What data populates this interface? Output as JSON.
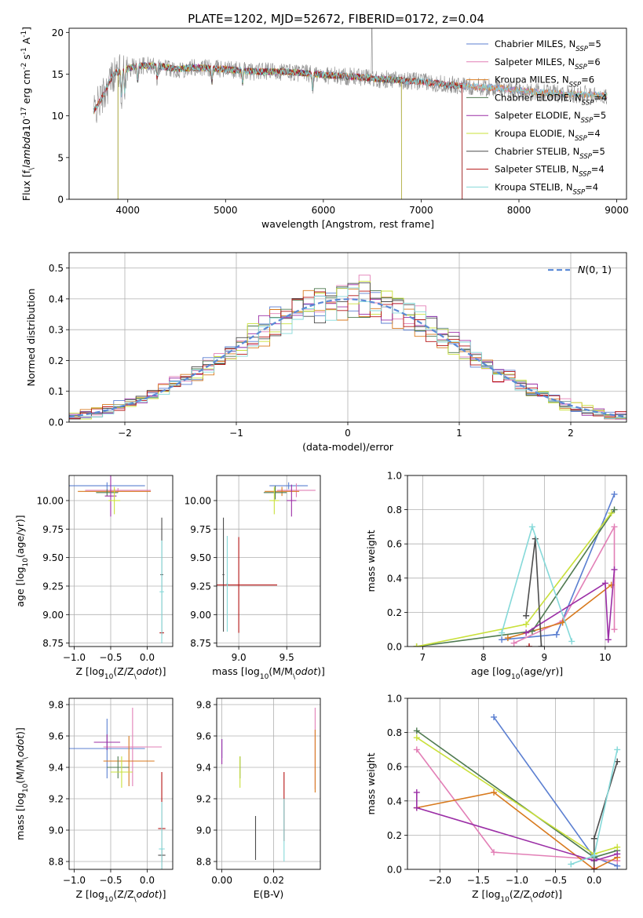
{
  "figure": {
    "title": "PLATE=1202, MJD=52672, FIBERID=0172, z=0.04"
  },
  "models": [
    {
      "name": "Chabrier MILES, N$_{SSP}$=5",
      "label": "Chabrier MILES, N",
      "sub": "SSP",
      "post": "=5",
      "color": "#5b7fd1"
    },
    {
      "name": "Salpeter MILES, N$_{SSP}$=6",
      "label": "Salpeter MILES, N",
      "sub": "SSP",
      "post": "=6",
      "color": "#e27fb6"
    },
    {
      "name": "Kroupa MILES, N$_{SSP}$=6",
      "label": "Kroupa MILES, N",
      "sub": "SSP",
      "post": "=6",
      "color": "#d87a1e"
    },
    {
      "name": "Chabrier ELODIE, N$_{SSP}$=4",
      "label": "Chabrier ELODIE, N",
      "sub": "SSP",
      "post": "=4",
      "color": "#4f7a50"
    },
    {
      "name": "Salpeter ELODIE, N$_{SSP}$=5",
      "label": "Salpeter ELODIE, N",
      "sub": "SSP",
      "post": "=5",
      "color": "#9b2ea6"
    },
    {
      "name": "Kroupa ELODIE, N$_{SSP}$=4",
      "label": "Kroupa ELODIE, N",
      "sub": "SSP",
      "post": "=4",
      "color": "#c9e03a"
    },
    {
      "name": "Chabrier STELIB, N$_{SSP}$=5",
      "label": "Chabrier STELIB, N",
      "sub": "SSP",
      "post": "=5",
      "color": "#4d4d4d"
    },
    {
      "name": "Salpeter STELIB, N$_{SSP}$=4",
      "label": "Salpeter STELIB, N",
      "sub": "SSP",
      "post": "=4",
      "color": "#b51414"
    },
    {
      "name": "Kroupa STELIB, N$_{SSP}$=4",
      "label": "Kroupa STELIB, N",
      "sub": "SSP",
      "post": "=4",
      "color": "#85d9d9"
    }
  ],
  "chart_data": [
    {
      "id": "spectrum",
      "type": "line",
      "xlabel": "wavelength [Angstrom, rest frame]",
      "ylabel": "Flux [f$_\\lambda$10$^{-17}$ erg cm$^{-2}$ s$^{-1}$ A$^{-1}$]",
      "xlim": [
        3400,
        9100
      ],
      "ylim": [
        0,
        20.5
      ],
      "xticks": [
        4000,
        5000,
        6000,
        7000,
        8000,
        9000
      ],
      "yticks": [
        0,
        5,
        10,
        15,
        20
      ],
      "legend": "upper right",
      "data_color": "#888888",
      "data_wavelength_range": [
        3650,
        8900
      ],
      "flux_profile": [
        [
          3650,
          10.5
        ],
        [
          3750,
          12.5
        ],
        [
          3850,
          15.0
        ],
        [
          3950,
          15.5
        ],
        [
          4100,
          16.0
        ],
        [
          4300,
          16.0
        ],
        [
          4500,
          15.6
        ],
        [
          4700,
          15.8
        ],
        [
          5000,
          15.6
        ],
        [
          5300,
          15.3
        ],
        [
          5600,
          15.3
        ],
        [
          6000,
          14.9
        ],
        [
          6300,
          14.7
        ],
        [
          6600,
          14.4
        ],
        [
          7000,
          14.1
        ],
        [
          7400,
          13.6
        ],
        [
          7800,
          13.3
        ],
        [
          8200,
          12.8
        ],
        [
          8600,
          12.6
        ],
        [
          8900,
          12.4
        ]
      ],
      "model_ranges": [
        [
          3650,
          8900
        ],
        [
          3650,
          8900
        ],
        [
          3650,
          8900
        ],
        [
          3900,
          6800
        ],
        [
          3900,
          6800
        ],
        [
          3900,
          6800
        ],
        [
          3650,
          7420
        ],
        [
          3650,
          7420
        ],
        [
          3650,
          8900
        ]
      ]
    },
    {
      "id": "residuals",
      "type": "step",
      "xlabel": "(data-model)/error",
      "ylabel": "Normed distribution",
      "xlim": [
        -2.5,
        2.5
      ],
      "ylim": [
        0,
        0.55
      ],
      "xticks": [
        -2,
        -1,
        0,
        1,
        2
      ],
      "yticks": [
        0.0,
        0.1,
        0.2,
        0.3,
        0.4,
        0.5
      ],
      "bin_width": 0.1,
      "grid": true,
      "legend": "upper right",
      "normal_label": "N(0,1)",
      "normal_color": "#5b8ad6"
    },
    {
      "id": "age_vs_Z",
      "type": "errorbar",
      "xlabel": "Z [log$_{10}$(Z/Z$_\\odot$)]",
      "ylabel": "age  [log$_{10}$(age/yr)]",
      "xlim": [
        -1.07,
        0.35
      ],
      "ylim": [
        8.72,
        10.22
      ],
      "xticks": [
        -1.0,
        -0.5,
        0.0
      ],
      "yticks": [
        8.75,
        9.0,
        9.25,
        9.5,
        9.75,
        10.0
      ],
      "grid": true,
      "points": [
        {
          "m": 0,
          "x": -0.55,
          "xerr": 0.52,
          "y": 10.13,
          "yerr": 0.03
        },
        {
          "m": 1,
          "x": -0.4,
          "xerr": 0.45,
          "y": 10.09,
          "yerr": 0.02
        },
        {
          "m": 2,
          "x": -0.45,
          "xerr": 0.5,
          "y": 10.08,
          "yerr": 0.02
        },
        {
          "m": 3,
          "x": -0.55,
          "xerr": 0.15,
          "y": 10.07,
          "yerr": 0.03
        },
        {
          "m": 4,
          "x": -0.5,
          "xerr": 0.08,
          "y": 10.04,
          "yerr": 0.18
        },
        {
          "m": 5,
          "x": -0.45,
          "xerr": 0.08,
          "y": 10.0,
          "yerr": 0.12
        },
        {
          "m": 6,
          "x": 0.2,
          "xerr": 0.02,
          "y": 9.35,
          "yerr": 0.5
        },
        {
          "m": 7,
          "x": 0.2,
          "xerr": 0.03,
          "y": 8.84,
          "yerr": 0.02
        },
        {
          "m": 8,
          "x": 0.2,
          "xerr": 0.03,
          "y": 9.2,
          "yerr": 0.45
        }
      ]
    },
    {
      "id": "age_vs_mass",
      "type": "errorbar",
      "xlabel": "mass [log$_{10}$(M/M$_\\odot$)]",
      "ylabel": "",
      "xlim": [
        8.77,
        9.85
      ],
      "ylim": [
        8.72,
        10.22
      ],
      "xticks": [
        9.0,
        9.5
      ],
      "yticks": [
        8.75,
        9.0,
        9.25,
        9.5,
        9.75,
        10.0
      ],
      "grid": true,
      "points": [
        {
          "m": 0,
          "x": 9.52,
          "xerr": 0.2,
          "y": 10.13,
          "yerr": 0.03
        },
        {
          "m": 1,
          "x": 9.6,
          "xerr": 0.2,
          "y": 10.09,
          "yerr": 0.06
        },
        {
          "m": 2,
          "x": 9.45,
          "xerr": 0.18,
          "y": 10.08,
          "yerr": 0.04
        },
        {
          "m": 3,
          "x": 9.38,
          "xerr": 0.12,
          "y": 10.07,
          "yerr": 0.06
        },
        {
          "m": 4,
          "x": 9.55,
          "xerr": 0.05,
          "y": 10.0,
          "yerr": 0.14
        },
        {
          "m": 5,
          "x": 9.37,
          "xerr": 0.05,
          "y": 10.0,
          "yerr": 0.12
        },
        {
          "m": 6,
          "x": 8.84,
          "xerr": 0.01,
          "y": 9.35,
          "yerr": 0.5
        },
        {
          "m": 7,
          "x": 9.0,
          "xerr": 0.4,
          "y": 9.26,
          "yerr": 0.42
        },
        {
          "m": 8,
          "x": 8.88,
          "xerr": 0.01,
          "y": 9.27,
          "yerr": 0.42
        }
      ]
    },
    {
      "id": "massweight_vs_age",
      "type": "line",
      "xlabel": "age  [log$_{10}$(age/yr)]",
      "ylabel": "mass weight",
      "xlim": [
        6.75,
        10.35
      ],
      "ylim": [
        0.0,
        1.0
      ],
      "xticks": [
        7,
        8,
        9,
        10
      ],
      "yticks": [
        0.0,
        0.2,
        0.4,
        0.6,
        0.8,
        1.0
      ],
      "grid": true,
      "series": [
        {
          "m": 0,
          "x": [
            8.3,
            9.2,
            10.15
          ],
          "y": [
            0.04,
            0.07,
            0.89
          ]
        },
        {
          "m": 1,
          "x": [
            8.5,
            9.3,
            10.15,
            10.15
          ],
          "y": [
            0.02,
            0.15,
            0.7,
            0.1
          ]
        },
        {
          "m": 2,
          "x": [
            8.4,
            9.3,
            10.1
          ],
          "y": [
            0.05,
            0.14,
            0.36
          ]
        },
        {
          "m": 3,
          "x": [
            6.9,
            8.8,
            10.15
          ],
          "y": [
            0.0,
            0.09,
            0.8
          ]
        },
        {
          "m": 4,
          "x": [
            8.7,
            10.0,
            10.05,
            10.15
          ],
          "y": [
            0.08,
            0.37,
            0.04,
            0.45
          ]
        },
        {
          "m": 5,
          "x": [
            6.9,
            8.7,
            10.1
          ],
          "y": [
            0.0,
            0.13,
            0.78
          ]
        },
        {
          "m": 6,
          "x": [
            8.7,
            8.85,
            8.95
          ],
          "y": [
            0.18,
            0.63,
            0.0
          ]
        },
        {
          "m": 7,
          "x": [
            8.75
          ],
          "y": [
            0.0
          ]
        },
        {
          "m": 8,
          "x": [
            8.3,
            8.8,
            9.45
          ],
          "y": [
            0.08,
            0.7,
            0.03
          ]
        }
      ]
    },
    {
      "id": "mass_vs_Z",
      "type": "errorbar",
      "xlabel": "Z [log$_{10}$(Z/Z$_\\odot$)]",
      "ylabel": "mass [log$_{10}$(M/M$_\\odot$)]",
      "xlim": [
        -1.07,
        0.35
      ],
      "ylim": [
        8.75,
        9.84
      ],
      "xticks": [
        -1.0,
        -0.5,
        0.0
      ],
      "yticks": [
        8.8,
        9.0,
        9.2,
        9.4,
        9.6,
        9.8
      ],
      "grid": true,
      "points": [
        {
          "m": 0,
          "x": -0.55,
          "xerr": 0.52,
          "y": 9.52,
          "yerr": 0.19
        },
        {
          "m": 1,
          "x": -0.2,
          "xerr": 0.4,
          "y": 9.53,
          "yerr": 0.25
        },
        {
          "m": 2,
          "x": -0.25,
          "xerr": 0.35,
          "y": 9.44,
          "yerr": 0.16
        },
        {
          "m": 3,
          "x": -0.4,
          "xerr": 0.15,
          "y": 9.4,
          "yerr": 0.07
        },
        {
          "m": 4,
          "x": -0.55,
          "xerr": 0.18,
          "y": 9.56,
          "yerr": 0.05
        },
        {
          "m": 5,
          "x": -0.35,
          "xerr": 0.15,
          "y": 9.37,
          "yerr": 0.1
        },
        {
          "m": 6,
          "x": 0.2,
          "xerr": 0.05,
          "y": 8.84,
          "yerr": 0.04
        },
        {
          "m": 7,
          "x": 0.2,
          "xerr": 0.05,
          "y": 9.01,
          "yerr": 0.36
        },
        {
          "m": 8,
          "x": 0.2,
          "xerr": 0.04,
          "y": 8.88,
          "yerr": 0.3
        }
      ]
    },
    {
      "id": "mass_vs_EBV",
      "type": "errorbar",
      "xlabel": "E(B-V)",
      "ylabel": "",
      "xlim": [
        -0.002,
        0.038
      ],
      "ylim": [
        8.75,
        9.84
      ],
      "xticks": [
        0.0,
        0.02
      ],
      "xticklabels": [
        "0.00",
        "0.02"
      ],
      "yticks": [
        8.8,
        9.0,
        9.2,
        9.4,
        9.6,
        9.8
      ],
      "grid": true,
      "points": [
        {
          "m": 0,
          "x": 0.0,
          "xerr": 0,
          "y": 9.52,
          "yerr": 0.06
        },
        {
          "m": 1,
          "x": 0.036,
          "xerr": 0,
          "y": 9.52,
          "yerr": 0.26
        },
        {
          "m": 2,
          "x": 0.036,
          "xerr": 0,
          "y": 9.44,
          "yerr": 0.2
        },
        {
          "m": 3,
          "x": 0.007,
          "xerr": 0,
          "y": 9.4,
          "yerr": 0.07
        },
        {
          "m": 4,
          "x": 0.0,
          "xerr": 0,
          "y": 9.5,
          "yerr": 0.08
        },
        {
          "m": 5,
          "x": 0.007,
          "xerr": 0,
          "y": 9.37,
          "yerr": 0.1
        },
        {
          "m": 6,
          "x": 0.013,
          "xerr": 0,
          "y": 8.95,
          "yerr": 0.14
        },
        {
          "m": 7,
          "x": 0.024,
          "xerr": 0,
          "y": 9.15,
          "yerr": 0.22
        },
        {
          "m": 8,
          "x": 0.024,
          "xerr": 0,
          "y": 9.0,
          "yerr": 0.2
        }
      ]
    },
    {
      "id": "massweight_vs_Z",
      "type": "line",
      "xlabel": "Z [log$_{10}$(Z/Z$_\\odot$)]",
      "ylabel": "mass weight",
      "xlim": [
        -2.42,
        0.42
      ],
      "ylim": [
        0.0,
        1.0
      ],
      "xticks": [
        -2.0,
        -1.5,
        -1.0,
        -0.5,
        0.0
      ],
      "yticks": [
        0.0,
        0.2,
        0.4,
        0.6,
        0.8,
        1.0
      ],
      "grid": true,
      "series": [
        {
          "m": 0,
          "x": [
            -1.3,
            0.0,
            0.3
          ],
          "y": [
            0.89,
            0.07,
            0.02
          ]
        },
        {
          "m": 1,
          "x": [
            -2.3,
            -1.3,
            0.3
          ],
          "y": [
            0.7,
            0.1,
            0.05
          ]
        },
        {
          "m": 2,
          "x": [
            -2.3,
            -1.3,
            0.0,
            0.3
          ],
          "y": [
            0.36,
            0.45,
            0.0,
            0.07
          ]
        },
        {
          "m": 3,
          "x": [
            -2.3,
            0.0,
            0.3
          ],
          "y": [
            0.81,
            0.07,
            0.11
          ]
        },
        {
          "m": 4,
          "x": [
            -2.3,
            -2.3,
            0.0,
            0.3
          ],
          "y": [
            0.45,
            0.36,
            0.05,
            0.09
          ]
        },
        {
          "m": 5,
          "x": [
            -2.3,
            0.0,
            0.3
          ],
          "y": [
            0.77,
            0.09,
            0.13
          ]
        },
        {
          "m": 6,
          "x": [
            0.0,
            0.0,
            0.3
          ],
          "y": [
            0.0,
            0.18,
            0.63
          ]
        },
        {
          "m": 7,
          "x": [
            0.0
          ],
          "y": [
            0.0
          ]
        },
        {
          "m": 8,
          "x": [
            -0.3,
            0.0,
            0.3
          ],
          "y": [
            0.03,
            0.08,
            0.7
          ]
        }
      ]
    }
  ]
}
